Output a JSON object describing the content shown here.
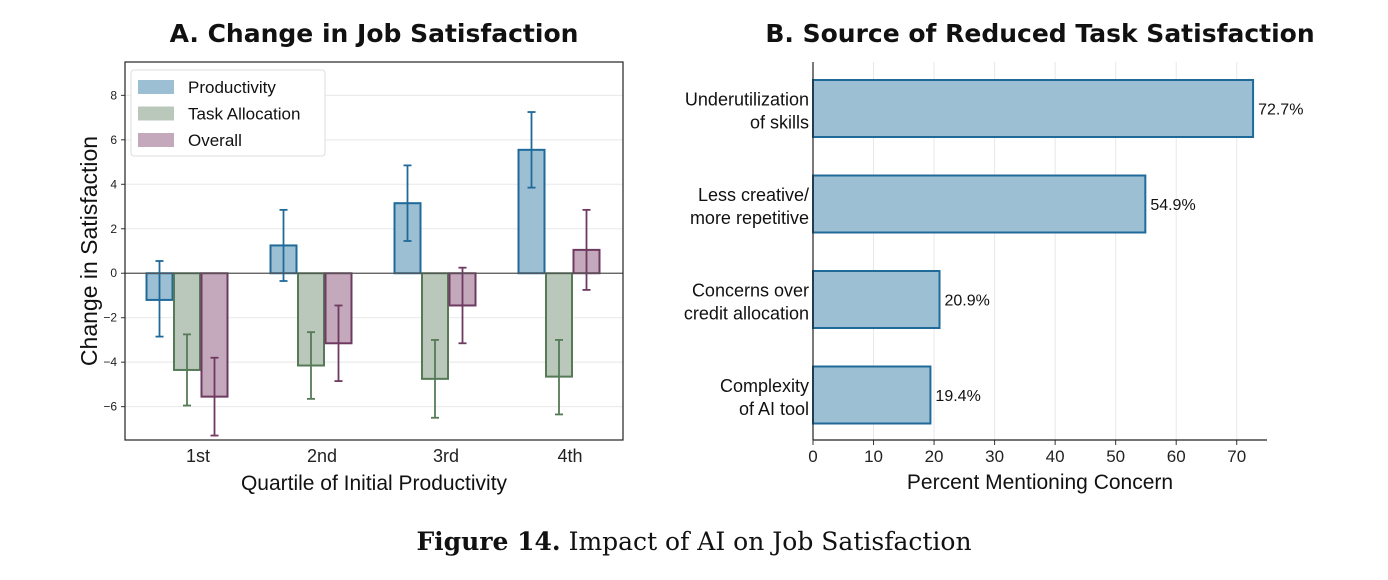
{
  "chart_data": [
    {
      "type": "bar",
      "title": "A. Change in Job Satisfaction",
      "xlabel": "Quartile of Initial Productivity",
      "ylabel": "Change in Satisfaction",
      "categories": [
        "1st",
        "2nd",
        "3rd",
        "4th"
      ],
      "ylim": [
        -7.5,
        9.5
      ],
      "yticks": [
        -6,
        -4,
        -2,
        0,
        2,
        4,
        6,
        8
      ],
      "grid": true,
      "legend_placement": "top-left",
      "series": [
        {
          "name": "Productivity",
          "color": "#9dbfd4",
          "edge": "#1f6a99",
          "values": [
            -1.2,
            1.25,
            3.15,
            5.55
          ],
          "err_low": [
            -2.85,
            -0.35,
            1.45,
            3.85
          ],
          "err_high": [
            0.55,
            2.85,
            4.85,
            7.25
          ]
        },
        {
          "name": "Task Allocation",
          "color": "#bac8bb",
          "edge": "#567a58",
          "values": [
            -4.35,
            -4.15,
            -4.75,
            -4.65
          ],
          "err_low": [
            -5.95,
            -5.65,
            -6.5,
            -6.35
          ],
          "err_high": [
            -2.75,
            -2.65,
            -3.0,
            -3.0
          ]
        },
        {
          "name": "Overall",
          "color": "#c4a9bc",
          "edge": "#6e3a60",
          "values": [
            -5.55,
            -3.15,
            -1.45,
            1.05
          ],
          "err_low": [
            -7.3,
            -4.85,
            -3.15,
            -0.75
          ],
          "err_high": [
            -3.8,
            -1.45,
            0.25,
            2.85
          ]
        }
      ]
    },
    {
      "type": "bar",
      "orientation": "horizontal",
      "title": "B. Source of Reduced Task Satisfaction",
      "xlabel": "Percent Mentioning Concern",
      "ylabel": "",
      "categories": [
        [
          "Underutilization",
          "of skills"
        ],
        [
          "Less creative/",
          "more repetitive"
        ],
        [
          "Concerns over",
          "credit allocation"
        ],
        [
          "Complexity",
          "of AI tool"
        ]
      ],
      "values": [
        72.7,
        54.9,
        20.9,
        19.4
      ],
      "labels": [
        "72.7%",
        "54.9%",
        "20.9%",
        "19.4%"
      ],
      "xlim": [
        0,
        75
      ],
      "xticks": [
        0,
        10,
        20,
        30,
        40,
        50,
        60,
        70
      ],
      "grid": true,
      "color": "#9dbfd4",
      "edge": "#1f6a99"
    }
  ],
  "caption": {
    "label": "Figure 14.",
    "text": " Impact of AI on Job Satisfaction"
  }
}
